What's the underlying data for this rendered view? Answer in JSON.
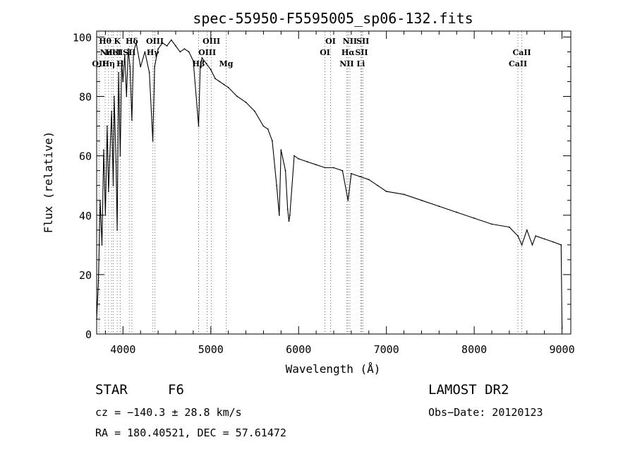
{
  "chart_data": {
    "type": "line",
    "title": "spec-55950-F5595005_sp06-132.fits",
    "xlabel": "Wavelength (Å)",
    "ylabel": "Flux (relative)",
    "xlim": [
      3700,
      9100
    ],
    "ylim": [
      0,
      102
    ],
    "xticks": [
      4000,
      5000,
      6000,
      7000,
      8000,
      9000
    ],
    "yticks": [
      0,
      20,
      40,
      60,
      80,
      100
    ],
    "grid": false,
    "series": [
      {
        "x": [
          3700,
          3720,
          3740,
          3760,
          3780,
          3800,
          3820,
          3835,
          3850,
          3870,
          3889,
          3900,
          3920,
          3934,
          3950,
          3968,
          3985,
          4000,
          4020,
          4040,
          4060,
          4080,
          4101,
          4120,
          4150,
          4200,
          4250,
          4300,
          4340,
          4360,
          4400,
          4450,
          4500,
          4550,
          4600,
          4650,
          4700,
          4750,
          4800,
          4861,
          4880,
          4900,
          4950,
          5000,
          5050,
          5100,
          5150,
          5200,
          5300,
          5400,
          5500,
          5600,
          5650,
          5700,
          5750,
          5780,
          5800,
          5850,
          5875,
          5890,
          5900,
          5950,
          6000,
          6100,
          6200,
          6300,
          6400,
          6500,
          6563,
          6600,
          6700,
          6800,
          6900,
          7000,
          7200,
          7400,
          7600,
          7800,
          8000,
          8200,
          8400,
          8498,
          8542,
          8600,
          8662,
          8700,
          8800,
          8900,
          8990,
          9000
        ],
        "values": [
          5,
          18,
          45,
          30,
          62,
          40,
          70,
          48,
          60,
          75,
          50,
          80,
          58,
          35,
          88,
          60,
          92,
          85,
          94,
          80,
          96,
          90,
          72,
          95,
          98,
          90,
          95,
          88,
          65,
          90,
          96,
          98,
          97,
          99,
          97,
          95,
          96,
          95,
          92,
          70,
          90,
          93,
          91,
          89,
          86,
          85,
          84,
          83,
          80,
          78,
          75,
          70,
          69,
          65,
          50,
          40,
          62,
          55,
          42,
          38,
          40,
          60,
          59,
          58,
          57,
          56,
          56,
          55,
          45,
          54,
          53,
          52,
          50,
          48,
          47,
          45,
          43,
          41,
          39,
          37,
          36,
          33,
          30,
          35,
          30,
          33,
          32,
          31,
          30,
          2
        ]
      }
    ],
    "line_markers": [
      {
        "wavelength": 3727,
        "labels": [
          "OII"
        ],
        "row": 2
      },
      {
        "wavelength": 3797,
        "labels": [
          "Hθ"
        ],
        "row": 0
      },
      {
        "wavelength": 3835,
        "labels": [
          "Hη"
        ],
        "row": 2
      },
      {
        "wavelength": 3869,
        "labels": [
          "NeIII"
        ],
        "row": 1
      },
      {
        "wavelength": 3889,
        "labels": [
          "HeI"
        ],
        "row": 1
      },
      {
        "wavelength": 3934,
        "labels": [
          "K"
        ],
        "row": 0
      },
      {
        "wavelength": 3968,
        "labels": [
          "H"
        ],
        "row": 2
      },
      {
        "wavelength": 4072,
        "labels": [
          "SII"
        ],
        "row": 1
      },
      {
        "wavelength": 4101,
        "labels": [
          "Hδ"
        ],
        "row": 0
      },
      {
        "wavelength": 4340,
        "labels": [
          "Hγ"
        ],
        "row": 1
      },
      {
        "wavelength": 4363,
        "labels": [
          "OIII"
        ],
        "row": 0
      },
      {
        "wavelength": 4861,
        "labels": [
          "Hβ"
        ],
        "row": 2
      },
      {
        "wavelength": 4959,
        "labels": [
          "OIII"
        ],
        "row": 1
      },
      {
        "wavelength": 5007,
        "labels": [
          "OIII"
        ],
        "row": 0
      },
      {
        "wavelength": 5175,
        "labels": [
          "Mg"
        ],
        "row": 2
      },
      {
        "wavelength": 6300,
        "labels": [
          "OI"
        ],
        "row": 1
      },
      {
        "wavelength": 6364,
        "labels": [
          "OI"
        ],
        "row": 0
      },
      {
        "wavelength": 6548,
        "labels": [
          "NII"
        ],
        "row": 2
      },
      {
        "wavelength": 6563,
        "labels": [
          "Hα"
        ],
        "row": 1
      },
      {
        "wavelength": 6584,
        "labels": [
          "NII"
        ],
        "row": 0
      },
      {
        "wavelength": 6708,
        "labels": [
          "Li"
        ],
        "row": 2
      },
      {
        "wavelength": 6717,
        "labels": [
          "SII"
        ],
        "row": 1
      },
      {
        "wavelength": 6731,
        "labels": [
          "SII"
        ],
        "row": 0
      },
      {
        "wavelength": 8498,
        "labels": [
          "CaII"
        ],
        "row": 2
      },
      {
        "wavelength": 8542,
        "labels": [
          "CaII"
        ],
        "row": 1
      }
    ],
    "line_color": "#000000",
    "marker_color": "#e03c3c"
  },
  "info": {
    "class_label": "STAR",
    "subclass": "F6",
    "survey": "LAMOST DR2",
    "cz": "cz = −140.3 ± 28.8 km/s",
    "obs_date": "Obs−Date: 20120123",
    "coords": "RA = 180.40521, DEC =  57.61472"
  }
}
